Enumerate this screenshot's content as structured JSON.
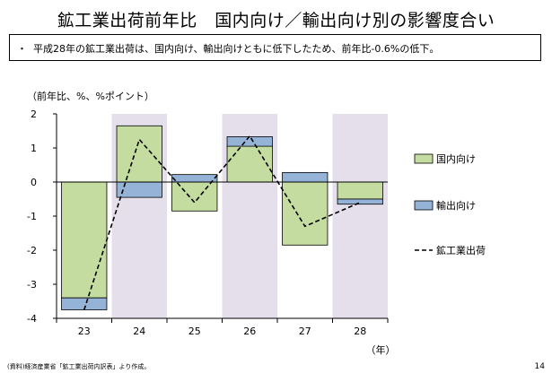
{
  "page": {
    "title": "鉱工業出荷前年比　国内向け／輸出向け別の影響度合い",
    "summary_bullet": "・",
    "summary": "平成28年の鉱工業出荷は、国内向け、輸出向けともに低下したため、前年比-0.6%の低下。",
    "unit_label": "（前年比、%、%ポイント）",
    "source": "(資料)経済産業省「鉱工業出荷内訳表」より作成。",
    "page_number": "14"
  },
  "chart_data": {
    "type": "bar",
    "categories": [
      "23",
      "24",
      "25",
      "26",
      "27",
      "28"
    ],
    "xlabel": "（年）",
    "ylabel": "",
    "ylim": [
      -4,
      2
    ],
    "yticks": [
      2,
      1,
      0,
      -1,
      -2,
      -3,
      -4
    ],
    "stacked": true,
    "shaded_categories": [
      "24",
      "26",
      "28"
    ],
    "series": [
      {
        "name": "国内向け",
        "type": "bar",
        "color": "#c4dca0",
        "values": [
          -3.4,
          1.65,
          -0.85,
          1.05,
          -1.85,
          -0.5
        ]
      },
      {
        "name": "輸出向け",
        "type": "bar",
        "color": "#95b3d7",
        "values": [
          -0.35,
          -0.45,
          0.22,
          0.28,
          0.28,
          -0.15
        ]
      },
      {
        "name": "鉱工業出荷",
        "type": "line",
        "style": "dashed",
        "color": "#000000",
        "values": [
          -3.75,
          1.25,
          -0.6,
          1.35,
          -1.3,
          -0.6
        ]
      }
    ],
    "legend_position": "right",
    "grid": false
  }
}
